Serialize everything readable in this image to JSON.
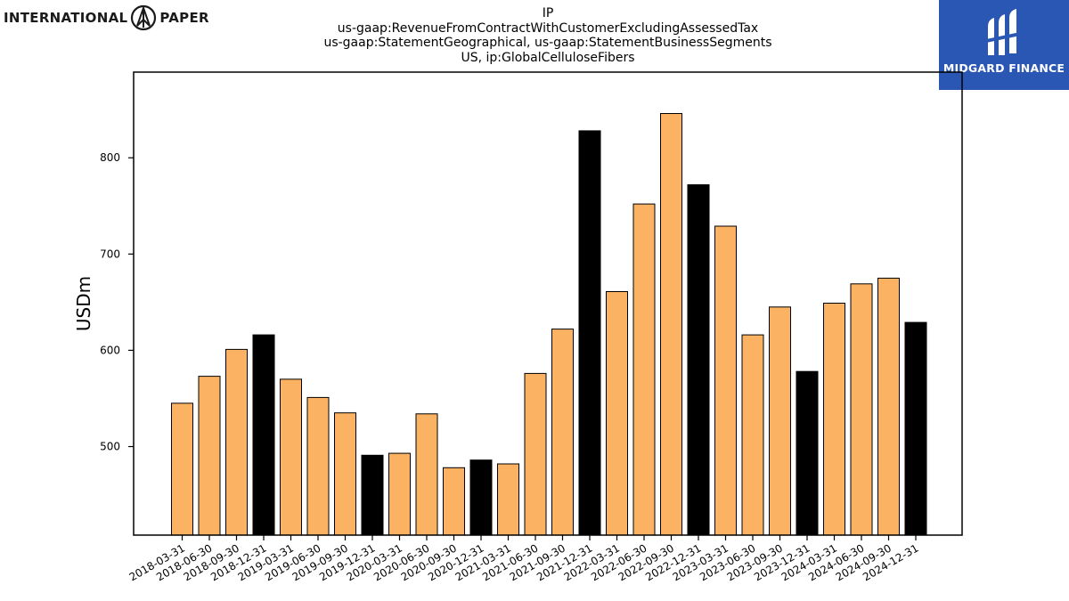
{
  "header": {
    "ip_logo_left": "INTERNATIONAL",
    "ip_logo_right": "PAPER",
    "midgard_logo": "MIDGARD FINANCE"
  },
  "colors": {
    "bar_default": "#fbb262",
    "bar_year_end": "#000000",
    "midgard_bg": "#2a57b3"
  },
  "chart_data": {
    "type": "bar",
    "title_lines": [
      "IP",
      "us-gaap:RevenueFromContractWithCustomerExcludingAssessedTax",
      "us-gaap:StatementGeographical, us-gaap:StatementBusinessSegments",
      "US, ip:GlobalCelluloseFibers"
    ],
    "ylabel": "USDm",
    "xlabel": "",
    "ylim": [
      408,
      889
    ],
    "yticks": [
      500,
      600,
      700,
      800
    ],
    "categories": [
      "2018-03-31",
      "2018-06-30",
      "2018-09-30",
      "2018-12-31",
      "2019-03-31",
      "2019-06-30",
      "2019-09-30",
      "2019-12-31",
      "2020-03-31",
      "2020-06-30",
      "2020-09-30",
      "2020-12-31",
      "2021-03-31",
      "2021-06-30",
      "2021-09-30",
      "2021-12-31",
      "2022-03-31",
      "2022-06-30",
      "2022-09-30",
      "2022-12-31",
      "2023-03-31",
      "2023-06-30",
      "2023-09-30",
      "2023-12-31",
      "2024-03-31",
      "2024-06-30",
      "2024-09-30",
      "2024-12-31"
    ],
    "values": [
      545,
      573,
      601,
      616,
      570,
      551,
      535,
      491,
      493,
      534,
      478,
      486,
      482,
      576,
      622,
      828,
      661,
      752,
      846,
      772,
      729,
      616,
      645,
      578,
      649,
      669,
      675,
      629
    ],
    "highlight_year_end": true,
    "grid": false
  }
}
